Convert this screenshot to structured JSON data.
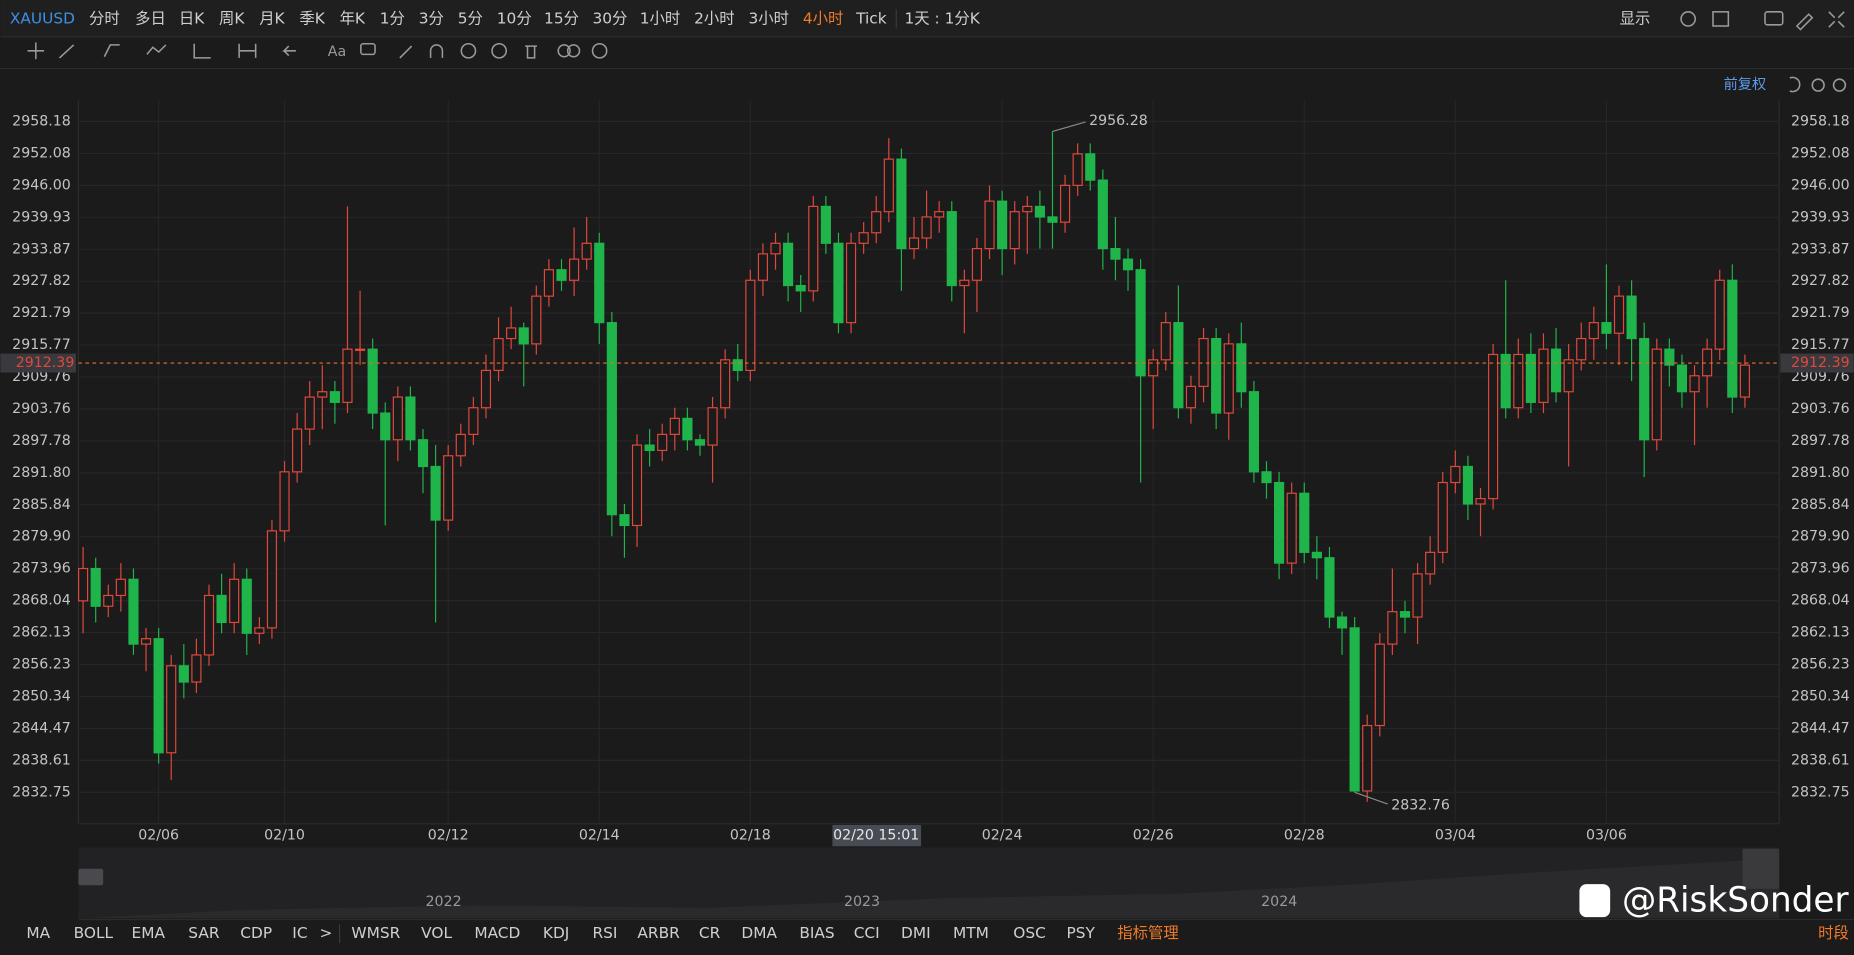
{
  "toolbar": {
    "symbol": "XAUUSD",
    "periods": [
      "分时",
      "多日",
      "日K",
      "周K",
      "月K",
      "季K",
      "年K",
      "1分",
      "3分",
      "5分",
      "10分",
      "15分",
      "30分",
      "1小时",
      "2小时",
      "3小时",
      "4小时",
      "Tick"
    ],
    "active_period": "4小时",
    "range": "1天 : 1分K",
    "display": "显示"
  },
  "text_tool": "Aa",
  "adjust_mode": "前复权",
  "indicators": [
    "MA",
    "BOLL",
    "EMA",
    "SAR",
    "CDP",
    "IC",
    ">",
    "WMSR",
    "VOL",
    "MACD",
    "KDJ",
    "RSI",
    "ARBR",
    "CR",
    "DMA",
    "BIAS",
    "CCI",
    "DMI",
    "MTM",
    "OSC",
    "PSY"
  ],
  "indicator_manager": "指标管理",
  "session": "时段",
  "navigator_years": [
    "2022",
    "2023",
    "2024"
  ],
  "watermark": "@RiskSonder",
  "chart_data": {
    "type": "candlestick",
    "log_scale": true,
    "grid": true,
    "up_color": "#e0483c",
    "down_color": "#1fb54a",
    "last_price_color": "#e0722c",
    "ylim": [
      2827.0,
      2962.2
    ],
    "yticks": [
      2958.18,
      2952.08,
      {
        "value": 2946,
        "label": "2946.00"
      },
      2939.93,
      2933.87,
      2927.82,
      2921.79,
      2915.77,
      2909.76,
      2903.76,
      2897.78,
      {
        "value": 2891.8,
        "label": "2891.80"
      },
      2885.84,
      {
        "value": 2879.9,
        "label": "2879.90"
      },
      2873.96,
      2868.04,
      2862.13,
      2856.23,
      2850.34,
      2844.47,
      2838.61,
      2832.75
    ],
    "last_price": 2912.39,
    "crosshair_label": "02/20 15:01",
    "categories": [
      null,
      null,
      null,
      null,
      null,
      null,
      "02/06",
      null,
      null,
      null,
      null,
      null,
      null,
      null,
      null,
      null,
      "02/10",
      null,
      null,
      null,
      null,
      null,
      null,
      null,
      null,
      null,
      null,
      null,
      null,
      "02/12",
      null,
      null,
      null,
      null,
      null,
      null,
      null,
      null,
      null,
      null,
      null,
      "02/14",
      null,
      null,
      null,
      null,
      null,
      null,
      null,
      null,
      null,
      null,
      null,
      "02/18",
      null,
      null,
      null,
      null,
      null,
      null,
      null,
      null,
      null,
      null,
      null,
      null,
      null,
      null,
      null,
      null,
      null,
      null,
      null,
      "02/24",
      null,
      null,
      null,
      null,
      null,
      null,
      null,
      null,
      null,
      null,
      null,
      "02/26",
      null,
      null,
      null,
      null,
      null,
      null,
      null,
      null,
      null,
      null,
      null,
      "02/28",
      null,
      null,
      null,
      null,
      null,
      null,
      null,
      null,
      null,
      null,
      null,
      "03/04",
      null,
      null,
      null,
      null,
      null,
      null,
      null,
      null,
      null,
      null,
      null,
      "03/06",
      null,
      null,
      null,
      null,
      null,
      null,
      null,
      null
    ],
    "ohlc": [
      [
        2868,
        2878,
        2862,
        2874
      ],
      [
        2874,
        2876,
        2864,
        2867
      ],
      [
        2867,
        2871,
        2865,
        2869
      ],
      [
        2869,
        2875,
        2866,
        2872
      ],
      [
        2872,
        2874,
        2858,
        2860
      ],
      [
        2860,
        2863,
        2855,
        2861
      ],
      [
        2861,
        2863,
        2838,
        2840
      ],
      [
        2840,
        2858,
        2835,
        2856
      ],
      [
        2856,
        2860,
        2850,
        2853
      ],
      [
        2853,
        2861,
        2851,
        2858
      ],
      [
        2858,
        2871,
        2856,
        2869
      ],
      [
        2869,
        2873,
        2862,
        2864
      ],
      [
        2864,
        2875,
        2862,
        2872
      ],
      [
        2872,
        2874,
        2858,
        2862
      ],
      [
        2862,
        2865,
        2860,
        2863
      ],
      [
        2863,
        2883,
        2861,
        2881
      ],
      [
        2881,
        2894,
        2879,
        2892
      ],
      [
        2892,
        2903,
        2890,
        2900
      ],
      [
        2900,
        2909,
        2897,
        2906
      ],
      [
        2906,
        2912,
        2900,
        2907
      ],
      [
        2907,
        2909,
        2901,
        2905
      ],
      [
        2905,
        2942,
        2903,
        2915
      ],
      [
        2915,
        2926,
        2912,
        2915
      ],
      [
        2915,
        2917,
        2900,
        2903
      ],
      [
        2903,
        2905,
        2882,
        2898
      ],
      [
        2898,
        2908,
        2894,
        2906
      ],
      [
        2906,
        2908,
        2896,
        2898
      ],
      [
        2898,
        2900,
        2888,
        2893
      ],
      [
        2893,
        2897,
        2864,
        2883
      ],
      [
        2883,
        2897,
        2881,
        2895
      ],
      [
        2895,
        2901,
        2893,
        2899
      ],
      [
        2899,
        2906,
        2897,
        2904
      ],
      [
        2904,
        2914,
        2902,
        2911
      ],
      [
        2911,
        2921,
        2909,
        2917
      ],
      [
        2917,
        2923,
        2915,
        2919
      ],
      [
        2919,
        2920,
        2908,
        2916
      ],
      [
        2916,
        2927,
        2914,
        2925
      ],
      [
        2925,
        2932,
        2923,
        2930
      ],
      [
        2930,
        2932,
        2926,
        2928
      ],
      [
        2928,
        2938,
        2925,
        2932
      ],
      [
        2932,
        2940,
        2930,
        2935
      ],
      [
        2935,
        2937,
        2916,
        2920
      ],
      [
        2920,
        2922,
        2880,
        2884
      ],
      [
        2884,
        2886,
        2876,
        2882
      ],
      [
        2882,
        2899,
        2878,
        2897
      ],
      [
        2897,
        2900,
        2893,
        2896
      ],
      [
        2896,
        2901,
        2894,
        2899
      ],
      [
        2899,
        2904,
        2896,
        2902
      ],
      [
        2902,
        2904,
        2896,
        2898
      ],
      [
        2898,
        2899,
        2895,
        2897
      ],
      [
        2897,
        2906,
        2890,
        2904
      ],
      [
        2904,
        2915,
        2902,
        2913
      ],
      [
        2913,
        2916,
        2909,
        2911
      ],
      [
        2911,
        2930,
        2909,
        2928
      ],
      [
        2928,
        2935,
        2925,
        2933
      ],
      [
        2933,
        2937,
        2930,
        2935
      ],
      [
        2935,
        2937,
        2924,
        2927
      ],
      [
        2927,
        2929,
        2922,
        2926
      ],
      [
        2926,
        2944,
        2924,
        2942
      ],
      [
        2942,
        2944,
        2933,
        2935
      ],
      [
        2935,
        2937,
        2918,
        2920
      ],
      [
        2920,
        2937,
        2918,
        2935
      ],
      [
        2935,
        2939,
        2933,
        2937
      ],
      [
        2937,
        2944,
        2935,
        2941
      ],
      [
        2941,
        2955,
        2939,
        2951
      ],
      [
        2951,
        2953,
        2926,
        2934
      ],
      [
        2934,
        2940,
        2932,
        2936
      ],
      [
        2936,
        2945,
        2934,
        2940
      ],
      [
        2940,
        2943,
        2937,
        2941
      ],
      [
        2941,
        2943,
        2924,
        2927
      ],
      [
        2927,
        2930,
        2918,
        2928
      ],
      [
        2928,
        2936,
        2922,
        2934
      ],
      [
        2934,
        2946,
        2932,
        2943
      ],
      [
        2943,
        2945,
        2929,
        2934
      ],
      [
        2934,
        2943,
        2931,
        2941
      ],
      [
        2941,
        2944,
        2933,
        2942
      ],
      [
        2942,
        2945,
        2934,
        2940
      ],
      [
        2940,
        2956.28,
        2934,
        2939
      ],
      [
        2939,
        2948,
        2937,
        2946
      ],
      [
        2946,
        2954,
        2944,
        2952
      ],
      [
        2952,
        2954,
        2945,
        2947
      ],
      [
        2947,
        2949,
        2930,
        2934
      ],
      [
        2934,
        2940,
        2928,
        2932
      ],
      [
        2932,
        2934,
        2926,
        2930
      ],
      [
        2930,
        2932,
        2890,
        2910
      ],
      [
        2910,
        2915,
        2900,
        2913
      ],
      [
        2913,
        2922,
        2911,
        2920
      ],
      [
        2920,
        2927,
        2902,
        2904
      ],
      [
        2904,
        2910,
        2901,
        2908
      ],
      [
        2908,
        2919,
        2905,
        2917
      ],
      [
        2917,
        2919,
        2900,
        2903
      ],
      [
        2903,
        2918,
        2898,
        2916
      ],
      [
        2916,
        2920,
        2904,
        2907
      ],
      [
        2907,
        2909,
        2890,
        2892
      ],
      [
        2892,
        2894,
        2887,
        2890
      ],
      [
        2890,
        2892,
        2872,
        2875
      ],
      [
        2875,
        2890,
        2873,
        2888
      ],
      [
        2888,
        2890,
        2875,
        2877
      ],
      [
        2877,
        2880,
        2872,
        2876
      ],
      [
        2876,
        2878,
        2863,
        2865
      ],
      [
        2865,
        2866,
        2858,
        2863
      ],
      [
        2863,
        2865,
        2832.76,
        2833
      ],
      [
        2833,
        2847,
        2831,
        2845
      ],
      [
        2845,
        2862,
        2843,
        2860
      ],
      [
        2860,
        2874,
        2858,
        2866
      ],
      [
        2866,
        2868,
        2862,
        2865
      ],
      [
        2865,
        2875,
        2860,
        2873
      ],
      [
        2873,
        2880,
        2871,
        2877
      ],
      [
        2877,
        2892,
        2875,
        2890
      ],
      [
        2890,
        2896,
        2888,
        2893
      ],
      [
        2893,
        2895,
        2883,
        2886
      ],
      [
        2886,
        2889,
        2880,
        2887
      ],
      [
        2887,
        2916,
        2885,
        2914
      ],
      [
        2914,
        2928,
        2902,
        2904
      ],
      [
        2904,
        2917,
        2902,
        2914
      ],
      [
        2914,
        2918,
        2903,
        2905
      ],
      [
        2905,
        2918,
        2903,
        2915
      ],
      [
        2915,
        2919,
        2905,
        2907
      ],
      [
        2907,
        2916,
        2893,
        2913
      ],
      [
        2913,
        2920,
        2911,
        2917
      ],
      [
        2917,
        2923,
        2913,
        2920
      ],
      [
        2920,
        2931,
        2915,
        2918
      ],
      [
        2918,
        2927,
        2912,
        2925
      ],
      [
        2925,
        2928,
        2909,
        2917
      ],
      [
        2917,
        2920,
        2891,
        2898
      ],
      [
        2898,
        2917,
        2896,
        2915
      ],
      [
        2915,
        2917,
        2908,
        2912
      ],
      [
        2912,
        2914,
        2904,
        2907
      ],
      [
        2907,
        2912,
        2897,
        2910
      ],
      [
        2910,
        2917,
        2904,
        2915
      ],
      [
        2915,
        2930,
        2913,
        2928
      ],
      [
        2928,
        2931,
        2903,
        2906
      ],
      [
        2906,
        2914,
        2904,
        2912
      ]
    ],
    "high_annotation_index": 77,
    "low_annotation_index": 101
  }
}
